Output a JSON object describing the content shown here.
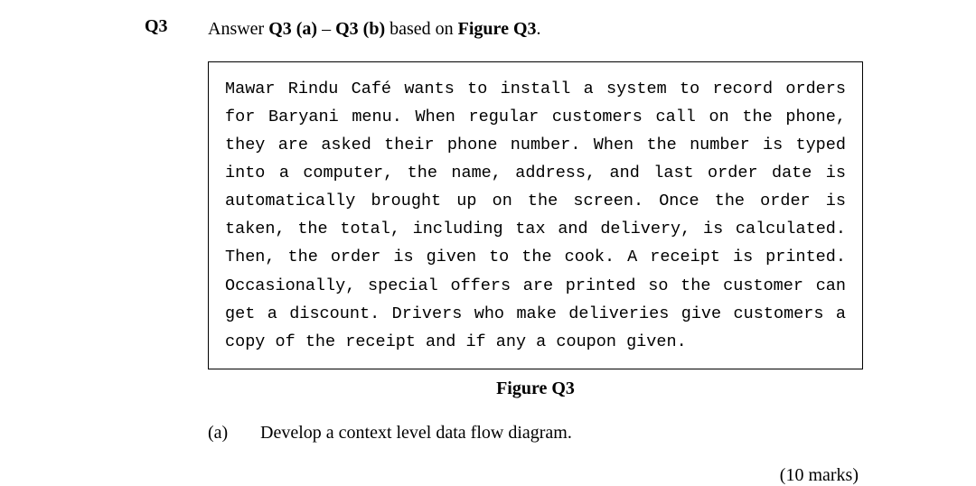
{
  "header": {
    "question_number": "Q3",
    "instruction_prefix": "Answer ",
    "instruction_bold1": "Q3 (a)",
    "instruction_dash": " – ",
    "instruction_bold2": "Q3 (b)",
    "instruction_mid": " based on ",
    "instruction_bold3": "Figure Q3",
    "instruction_suffix": "."
  },
  "figure": {
    "body_text": "Mawar Rindu Café wants to install a system to record orders for Baryani menu. When regular customers call on the phone, they are asked their phone number. When the number is typed into a computer, the name, address, and last order date is automatically brought up on the screen. Once the order is taken, the total, including tax and delivery, is calculated. Then, the order is given to the cook. A receipt is printed. Occasionally, special offers are printed so the customer can get a discount. Drivers who make deliveries give customers a copy of the receipt and if any a coupon given.",
    "caption": "Figure Q3"
  },
  "subpart": {
    "label": "(a)",
    "text": "Develop a context level data flow diagram."
  },
  "marks": {
    "text": "(10 marks)"
  },
  "style": {
    "background_color": "#ffffff",
    "text_color": "#000000",
    "border_color": "#000000",
    "serif_font": "Times New Roman",
    "mono_font": "Courier New",
    "body_fontsize_pt": 20,
    "mono_fontsize_pt": 18.5
  }
}
